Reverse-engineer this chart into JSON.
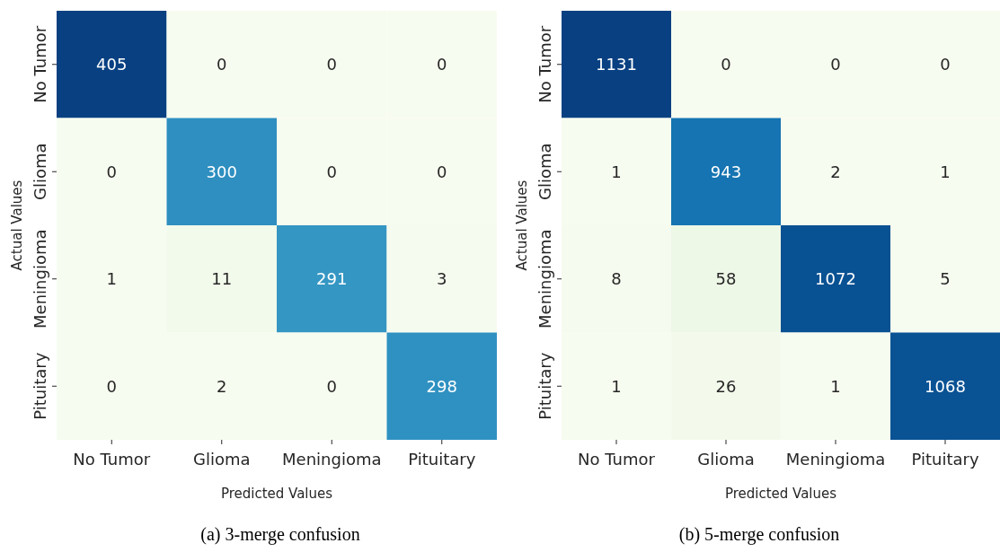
{
  "chart_data": [
    {
      "type": "heatmap",
      "xlabel": "Predicted Values",
      "ylabel": "Actual Values",
      "categories": [
        "No Tumor",
        "Glioma",
        "Meningioma",
        "Pituitary"
      ],
      "y_categories": [
        "No Tumor",
        "Glioma",
        "Meningioma",
        "Pituitary"
      ],
      "cells": [
        [
          405,
          0,
          0,
          0
        ],
        [
          0,
          300,
          0,
          0
        ],
        [
          1,
          11,
          291,
          3
        ],
        [
          0,
          2,
          0,
          298
        ]
      ],
      "data_labels": true,
      "annotations": [
        "(a) 3-merge confusion"
      ]
    },
    {
      "type": "heatmap",
      "xlabel": "Predicted Values",
      "ylabel": "Actual Values",
      "categories": [
        "No Tumor",
        "Glioma",
        "Meningioma",
        "Pituitary"
      ],
      "y_categories": [
        "No Tumor",
        "Glioma",
        "Meningioma",
        "Pituitary"
      ],
      "cells": [
        [
          1131,
          0,
          0,
          0
        ],
        [
          1,
          943,
          2,
          1
        ],
        [
          8,
          58,
          1072,
          5
        ],
        [
          1,
          26,
          1,
          1068
        ]
      ],
      "data_labels": true,
      "annotations": [
        "(b) 5-merge confusion"
      ]
    }
  ]
}
